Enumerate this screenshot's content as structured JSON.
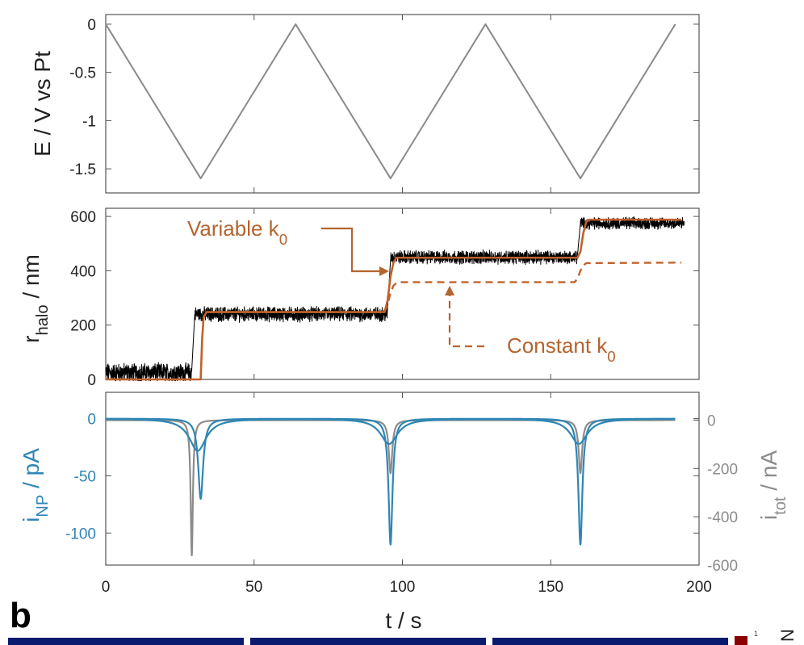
{
  "panel_label": "b",
  "strip": {
    "sup": "1",
    "z": "N"
  },
  "colors": {
    "axis": "#555555",
    "potential": "#8a8a8a",
    "halo_data": "#000000",
    "fit": "#c0622b",
    "annotation": "#b5642f",
    "inp": "#2f86b4",
    "itot": "#8c8c8c",
    "strip_blue": "#0a1a6e",
    "strip_red": "#8b0000"
  },
  "chart_data": [
    {
      "type": "line",
      "ylabel": "E / V vs Pt",
      "xlim": [
        0,
        200
      ],
      "ylim": [
        -1.75,
        0.1
      ],
      "yticks": [
        "0",
        "-0.5",
        "-1",
        "-1.5"
      ],
      "ytick_values": [
        0,
        -0.5,
        -1,
        -1.5
      ],
      "series": [
        {
          "x": [
            0,
            32,
            64,
            96,
            128,
            160,
            192
          ],
          "y": [
            0,
            -1.6,
            0,
            -1.6,
            0,
            -1.6,
            0
          ]
        }
      ]
    },
    {
      "type": "line",
      "ylabel": "r",
      "ylabel_sub": "halo",
      "ylabel_rest": " / nm",
      "xlim": [
        0,
        200
      ],
      "ylim": [
        0,
        630
      ],
      "yticks": [
        "0",
        "200",
        "400",
        "600"
      ],
      "ytick_values": [
        0,
        200,
        400,
        600
      ],
      "series": [
        {
          "style": "noisy",
          "segments": [
            {
              "x0": 0,
              "x1": 29,
              "y": 25,
              "noise": 28
            },
            {
              "x0": 30,
              "x1": 95,
              "y": 240,
              "noise": 22
            },
            {
              "x0": 96,
              "x1": 159,
              "y": 450,
              "noise": 20
            },
            {
              "x0": 160,
              "x1": 195,
              "y": 575,
              "noise": 18
            }
          ]
        },
        {
          "name": "Variable k0",
          "style": "solid",
          "x": [
            0,
            32,
            32.5,
            33,
            34,
            94,
            95,
            96,
            97,
            98,
            159,
            160,
            161,
            162,
            163,
            194
          ],
          "y": [
            0,
            0,
            150,
            230,
            248,
            248,
            290,
            380,
            430,
            448,
            448,
            470,
            540,
            580,
            588,
            588
          ]
        },
        {
          "name": "Constant k0",
          "style": "dashed",
          "x": [
            94,
            95,
            96,
            97,
            98,
            99,
            158,
            159,
            160,
            161,
            162,
            194
          ],
          "y": [
            248,
            275,
            320,
            345,
            355,
            358,
            358,
            370,
            400,
            420,
            428,
            430
          ]
        }
      ],
      "annotations": [
        {
          "text": "Variable k",
          "sub": "0",
          "style": "solid"
        },
        {
          "text": "Constant k",
          "sub": "0",
          "style": "dashed"
        }
      ]
    },
    {
      "type": "line",
      "ylabel": "i",
      "ylabel_sub": "NP",
      "ylabel_rest": " / pA",
      "ylabel_right": "i",
      "ylabel_right_sub": "tot",
      "ylabel_right_rest": " / nA",
      "xlabel": "t / s",
      "xlim": [
        0,
        200
      ],
      "xticks": [
        "0",
        "50",
        "100",
        "150",
        "200"
      ],
      "xtick_values": [
        0,
        50,
        100,
        150,
        200
      ],
      "ylim": [
        -128,
        23
      ],
      "yticks": [
        "0",
        "-50",
        "-100"
      ],
      "ytick_values": [
        0,
        -50,
        -100
      ],
      "ylim_right": [
        -600,
        115
      ],
      "yticks_right": [
        "0",
        "-200",
        "-400",
        "-600"
      ],
      "ytick_values_right": [
        0,
        -200,
        -400,
        -600
      ],
      "series": [
        {
          "name": "i_NP",
          "axis": "left",
          "peaks": [
            {
              "t": 32,
              "depth": 70,
              "w": 1.0
            },
            {
              "t": 96,
              "depth": 110,
              "w": 0.8
            },
            {
              "t": 160,
              "depth": 110,
              "w": 0.8
            }
          ],
          "broad": [
            {
              "t": 31,
              "depth": 28,
              "w": 3.5
            },
            {
              "t": 95.5,
              "depth": 22,
              "w": 3.5
            },
            {
              "t": 159.5,
              "depth": 22,
              "w": 3.5
            }
          ]
        },
        {
          "name": "i_tot",
          "axis": "right",
          "peaks": [
            {
              "t": 29,
              "depth": 560,
              "w": 0.45
            },
            {
              "t": 96,
              "depth": 220,
              "w": 0.7
            },
            {
              "t": 160,
              "depth": 220,
              "w": 0.7
            }
          ]
        }
      ]
    }
  ]
}
